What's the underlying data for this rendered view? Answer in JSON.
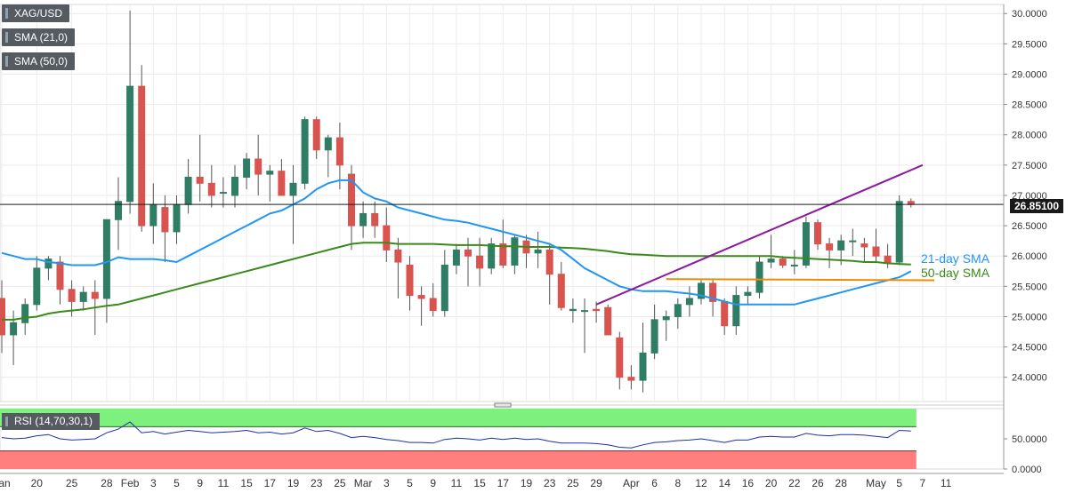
{
  "legend": {
    "symbol": "XAG/USD",
    "sma21": "SMA (21,0)",
    "sma50": "SMA (50,0)",
    "rsi": "RSI (14,70,30,1)"
  },
  "last_price_label": "26.85100",
  "annotations": {
    "sma21": "21-day SMA",
    "sma50": "50-day SMA"
  },
  "colors": {
    "bull": "#2e7d64",
    "bear": "#d9534f",
    "sma21": "#2196f3",
    "sma50": "#3a8a1a",
    "resistance": "#8b1a9e",
    "support": "#f08c00",
    "rsi_overbought": "#7ef07e",
    "rsi_oversold": "#ff7f7f",
    "rsi_line": "#1a2fb0"
  },
  "chart_data": [
    {
      "type": "candlestick",
      "title": "",
      "price_axis": {
        "ticks": [
          "30.0000",
          "29.5000",
          "29.0000",
          "28.5000",
          "28.0000",
          "27.5000",
          "27.0000",
          "26.5000",
          "26.0000",
          "25.5000",
          "25.0000",
          "24.5000",
          "24.0000"
        ],
        "range": [
          23.6,
          30.15
        ]
      },
      "x_axis_labels": [
        {
          "i": 0,
          "t": "Jan"
        },
        {
          "i": 3,
          "t": "20"
        },
        {
          "i": 6,
          "t": "25"
        },
        {
          "i": 9,
          "t": "28"
        },
        {
          "i": 11,
          "t": "Feb"
        },
        {
          "i": 13,
          "t": "3"
        },
        {
          "i": 15,
          "t": "5"
        },
        {
          "i": 17,
          "t": "9"
        },
        {
          "i": 19,
          "t": "11"
        },
        {
          "i": 21,
          "t": "15"
        },
        {
          "i": 23,
          "t": "17"
        },
        {
          "i": 25,
          "t": "19"
        },
        {
          "i": 27,
          "t": "23"
        },
        {
          "i": 29,
          "t": "25"
        },
        {
          "i": 31,
          "t": "Mar"
        },
        {
          "i": 33,
          "t": "3"
        },
        {
          "i": 35,
          "t": "5"
        },
        {
          "i": 37,
          "t": "9"
        },
        {
          "i": 39,
          "t": "11"
        },
        {
          "i": 41,
          "t": "15"
        },
        {
          "i": 43,
          "t": "17"
        },
        {
          "i": 45,
          "t": "19"
        },
        {
          "i": 47,
          "t": "23"
        },
        {
          "i": 49,
          "t": "25"
        },
        {
          "i": 51,
          "t": "29"
        },
        {
          "i": 54,
          "t": "Apr"
        },
        {
          "i": 56,
          "t": "6"
        },
        {
          "i": 58,
          "t": "8"
        },
        {
          "i": 60,
          "t": "12"
        },
        {
          "i": 62,
          "t": "14"
        },
        {
          "i": 64,
          "t": "16"
        },
        {
          "i": 66,
          "t": "20"
        },
        {
          "i": 68,
          "t": "22"
        },
        {
          "i": 70,
          "t": "26"
        },
        {
          "i": 72,
          "t": "28"
        },
        {
          "i": 75,
          "t": "May"
        },
        {
          "i": 77,
          "t": "5"
        },
        {
          "i": 79,
          "t": "7"
        },
        {
          "i": 81,
          "t": "11"
        }
      ],
      "candles": [
        [
          25.3,
          25.6,
          24.4,
          24.7
        ],
        [
          24.7,
          25.1,
          24.2,
          24.9
        ],
        [
          24.9,
          25.3,
          24.7,
          25.2
        ],
        [
          25.2,
          26.0,
          25.1,
          25.8
        ],
        [
          25.8,
          26.0,
          25.6,
          25.95
        ],
        [
          25.9,
          26.0,
          25.2,
          25.45
        ],
        [
          25.45,
          25.6,
          25.0,
          25.25
        ],
        [
          25.25,
          25.5,
          25.1,
          25.4
        ],
        [
          25.4,
          25.6,
          24.7,
          25.3
        ],
        [
          25.3,
          26.6,
          24.9,
          26.6
        ],
        [
          26.6,
          27.3,
          26.1,
          26.9
        ],
        [
          26.9,
          30.05,
          26.7,
          28.8
        ],
        [
          28.8,
          29.15,
          26.4,
          26.5
        ],
        [
          26.5,
          27.2,
          26.2,
          26.85
        ],
        [
          26.8,
          27.0,
          25.9,
          26.4
        ],
        [
          26.4,
          27.0,
          26.2,
          26.85
        ],
        [
          26.85,
          27.6,
          26.7,
          27.3
        ],
        [
          27.3,
          28.0,
          26.9,
          27.2
        ],
        [
          27.2,
          27.5,
          26.8,
          27.0
        ],
        [
          27.05,
          27.3,
          26.8,
          27.05
        ],
        [
          27.0,
          27.5,
          26.8,
          27.3
        ],
        [
          27.3,
          27.7,
          27.1,
          27.6
        ],
        [
          27.6,
          28.0,
          27.0,
          27.35
        ],
        [
          27.35,
          27.5,
          26.9,
          27.4
        ],
        [
          27.4,
          27.6,
          27.0,
          27.0
        ],
        [
          27.0,
          27.5,
          26.2,
          27.2
        ],
        [
          27.2,
          28.3,
          27.1,
          28.25
        ],
        [
          28.25,
          28.3,
          27.6,
          27.75
        ],
        [
          27.75,
          28.0,
          27.3,
          27.95
        ],
        [
          27.95,
          28.2,
          27.1,
          27.5
        ],
        [
          27.35,
          27.5,
          26.1,
          26.5
        ],
        [
          26.5,
          26.9,
          26.3,
          26.7
        ],
        [
          26.7,
          26.9,
          26.3,
          26.5
        ],
        [
          26.5,
          26.8,
          25.9,
          26.1
        ],
        [
          26.1,
          26.3,
          25.3,
          25.9
        ],
        [
          25.85,
          26.0,
          25.1,
          25.35
        ],
        [
          25.35,
          25.5,
          24.85,
          25.3
        ],
        [
          25.3,
          25.55,
          25.0,
          25.1
        ],
        [
          25.1,
          26.1,
          25.0,
          25.85
        ],
        [
          25.85,
          26.2,
          25.7,
          26.1
        ],
        [
          26.1,
          26.3,
          25.5,
          26.0
        ],
        [
          26.0,
          26.3,
          25.5,
          25.8
        ],
        [
          25.8,
          26.3,
          25.7,
          26.2
        ],
        [
          26.2,
          26.6,
          25.8,
          25.85
        ],
        [
          25.85,
          26.35,
          25.7,
          26.3
        ],
        [
          26.25,
          26.35,
          25.8,
          26.05
        ],
        [
          26.05,
          26.4,
          25.8,
          26.1
        ],
        [
          26.1,
          26.2,
          25.2,
          25.7
        ],
        [
          25.7,
          25.9,
          25.1,
          25.15
        ],
        [
          25.1,
          25.3,
          24.9,
          25.12
        ],
        [
          25.1,
          25.3,
          24.4,
          25.1
        ],
        [
          25.12,
          25.25,
          24.9,
          25.1
        ],
        [
          25.15,
          25.2,
          24.7,
          24.7
        ],
        [
          24.65,
          24.75,
          23.8,
          24.0
        ],
        [
          24.0,
          24.2,
          23.8,
          23.95
        ],
        [
          23.95,
          24.9,
          23.75,
          24.4
        ],
        [
          24.4,
          25.2,
          24.3,
          24.95
        ],
        [
          24.95,
          25.1,
          24.6,
          25.0
        ],
        [
          25.0,
          25.3,
          24.8,
          25.2
        ],
        [
          25.2,
          25.5,
          25.0,
          25.3
        ],
        [
          25.3,
          25.6,
          25.2,
          25.55
        ],
        [
          25.55,
          25.6,
          25.0,
          25.25
        ],
        [
          25.25,
          25.3,
          24.7,
          24.85
        ],
        [
          24.85,
          25.5,
          24.7,
          25.35
        ],
        [
          25.35,
          25.5,
          25.2,
          25.4
        ],
        [
          25.4,
          26.0,
          25.3,
          25.9
        ],
        [
          25.9,
          26.35,
          25.8,
          25.95
        ],
        [
          25.95,
          26.0,
          25.8,
          25.85
        ],
        [
          25.85,
          26.1,
          25.7,
          25.85
        ],
        [
          25.85,
          26.65,
          25.8,
          26.55
        ],
        [
          26.55,
          26.6,
          26.1,
          26.2
        ],
        [
          26.2,
          26.3,
          25.8,
          26.1
        ],
        [
          26.1,
          26.35,
          25.85,
          26.25
        ],
        [
          26.25,
          26.45,
          26.0,
          26.25
        ],
        [
          26.2,
          26.3,
          25.9,
          26.15
        ],
        [
          26.15,
          26.45,
          25.9,
          26.0
        ],
        [
          26.0,
          26.2,
          25.8,
          25.9
        ],
        [
          25.9,
          27.0,
          25.85,
          26.9
        ],
        [
          26.9,
          26.95,
          26.8,
          26.85
        ]
      ],
      "sma21": [
        26.05,
        26.0,
        25.95,
        25.95,
        25.9,
        25.88,
        25.85,
        25.85,
        25.85,
        25.9,
        25.98,
        25.95,
        25.95,
        25.95,
        25.93,
        25.9,
        26.0,
        26.1,
        26.2,
        26.3,
        26.4,
        26.5,
        26.6,
        26.7,
        26.75,
        26.85,
        26.95,
        27.1,
        27.2,
        27.25,
        27.25,
        27.05,
        26.95,
        26.9,
        26.8,
        26.75,
        26.7,
        26.65,
        26.6,
        26.58,
        26.55,
        26.5,
        26.45,
        26.4,
        26.35,
        26.3,
        26.25,
        26.2,
        26.1,
        25.95,
        25.8,
        25.7,
        25.6,
        25.5,
        25.45,
        25.42,
        25.42,
        25.42,
        25.4,
        25.38,
        25.35,
        25.3,
        25.25,
        25.2,
        25.2,
        25.2,
        25.2,
        25.2,
        25.2,
        25.25,
        25.3,
        25.35,
        25.4,
        25.45,
        25.5,
        25.55,
        25.6,
        25.65,
        25.75
      ],
      "sma50": [
        24.95,
        24.95,
        24.98,
        25.0,
        25.05,
        25.08,
        25.1,
        25.12,
        25.15,
        25.18,
        25.2,
        25.25,
        25.3,
        25.35,
        25.4,
        25.45,
        25.5,
        25.55,
        25.6,
        25.65,
        25.7,
        25.75,
        25.8,
        25.85,
        25.9,
        25.95,
        26.0,
        26.05,
        26.1,
        26.15,
        26.2,
        26.22,
        26.22,
        26.22,
        26.2,
        26.2,
        26.2,
        26.2,
        26.19,
        26.18,
        26.18,
        26.18,
        26.17,
        26.16,
        26.16,
        26.15,
        26.15,
        26.15,
        26.14,
        26.13,
        26.12,
        26.1,
        26.08,
        26.05,
        26.03,
        26.02,
        26.01,
        26.0,
        26.0,
        26.0,
        26.0,
        26.0,
        26.0,
        26.0,
        26.0,
        26.0,
        26.0,
        25.98,
        25.97,
        25.96,
        25.95,
        25.94,
        25.93,
        25.92,
        25.9,
        25.9,
        25.88,
        25.87,
        25.86
      ],
      "trendlines": [
        {
          "name": "resistance",
          "from": {
            "i": 51,
            "p": 25.2
          },
          "to": {
            "i": 79,
            "p": 27.5
          }
        },
        {
          "name": "support",
          "from": {
            "i": 57,
            "p": 25.62
          },
          "to": {
            "i": 80,
            "p": 25.6
          }
        }
      ]
    },
    {
      "type": "line",
      "title": "RSI (14,70,30,1)",
      "y_axis": {
        "ticks": [
          "50.0000",
          "0.0000"
        ],
        "range": [
          0,
          100
        ]
      },
      "overbought": 70,
      "oversold": 30,
      "values": [
        52,
        50,
        51,
        55,
        57,
        50,
        48,
        49,
        50,
        60,
        66,
        78,
        60,
        62,
        58,
        61,
        64,
        62,
        60,
        61,
        62,
        64,
        60,
        61,
        58,
        60,
        68,
        62,
        64,
        59,
        52,
        54,
        52,
        49,
        47,
        44,
        44,
        43,
        49,
        51,
        50,
        48,
        51,
        49,
        51,
        49,
        50,
        46,
        43,
        43,
        43,
        42,
        40,
        36,
        35,
        40,
        44,
        45,
        47,
        48,
        50,
        47,
        44,
        48,
        48,
        53,
        54,
        53,
        53,
        59,
        56,
        55,
        57,
        57,
        56,
        54,
        52,
        64,
        63
      ]
    }
  ]
}
